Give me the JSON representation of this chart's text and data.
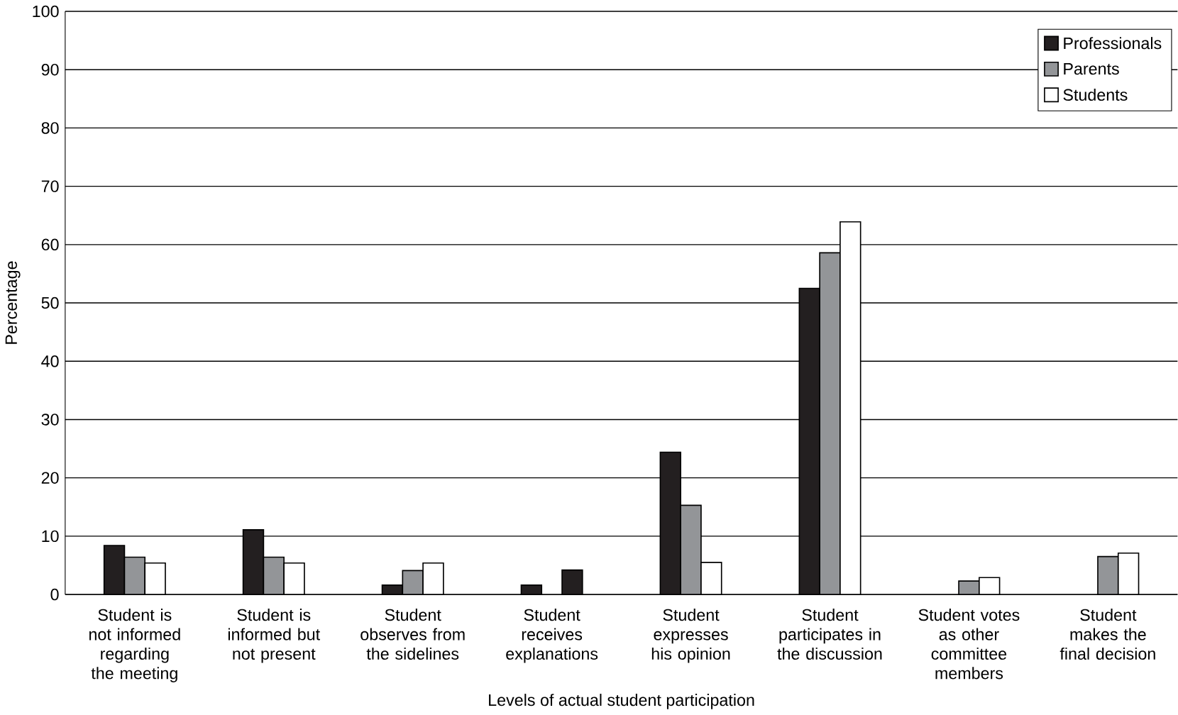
{
  "chart_data": {
    "type": "bar",
    "xlabel": "Levels of actual student participation",
    "ylabel": "Percentage",
    "categories": [
      "Student is not informed regarding the meeting",
      "Student is informed but not present",
      "Student observes from the sidelines",
      "Student receives explanations",
      "Student expresses his opinion",
      "Student participates in the discussion",
      "Student votes as other committee members",
      "Student makes the final decision"
    ],
    "series": [
      {
        "name": "Professionals",
        "color": "#231f20",
        "values": [
          8.4,
          11.1,
          1.6,
          1.6,
          24.4,
          52.5,
          null,
          null
        ]
      },
      {
        "name": "Parents",
        "color": "#939598",
        "values": [
          6.4,
          6.4,
          4.1,
          null,
          15.3,
          58.6,
          2.3,
          6.5
        ]
      },
      {
        "name": "Students",
        "color": "#ffffff",
        "colors": [
          "#ffffff",
          "#ffffff",
          "#ffffff",
          "#231f20",
          "#ffffff",
          "#ffffff",
          "#ffffff",
          "#ffffff"
        ],
        "values": [
          5.4,
          5.4,
          5.4,
          4.2,
          5.5,
          63.9,
          2.9,
          7.1
        ]
      }
    ],
    "ylim": [
      0,
      100
    ],
    "yticks": [
      0,
      10,
      20,
      30,
      40,
      50,
      60,
      70,
      80,
      90,
      100
    ],
    "grid": "y",
    "legend": "top right"
  }
}
